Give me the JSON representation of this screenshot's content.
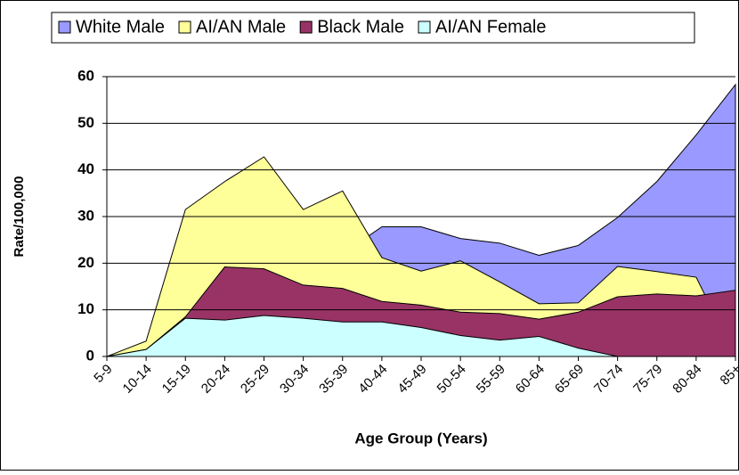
{
  "chart_data": {
    "type": "area",
    "categories": [
      "5-9",
      "10-14",
      "15-19",
      "20-24",
      "25-29",
      "30-34",
      "35-39",
      "40-44",
      "45-49",
      "50-54",
      "55-59",
      "60-64",
      "65-69",
      "70-74",
      "75-79",
      "80-84",
      "85+"
    ],
    "series": [
      {
        "name": "White Male",
        "color": "#9999ff",
        "values": [
          0,
          1,
          8,
          15,
          18,
          20,
          22,
          27.8,
          27.8,
          25.3,
          24.3,
          21.7,
          23.8,
          29.8,
          37.5,
          47.5,
          58.3
        ]
      },
      {
        "name": "AI/AN Male",
        "color": "#ffff99",
        "values": [
          0,
          3.3,
          31.5,
          37.5,
          42.8,
          31.5,
          35.5,
          21.2,
          18.3,
          20.5,
          16,
          11.3,
          11.5,
          19.3,
          18.2,
          17,
          0
        ]
      },
      {
        "name": "Black Male",
        "color": "#993366",
        "values": [
          0,
          1.5,
          8.5,
          19.2,
          18.8,
          15.3,
          14.6,
          11.8,
          11,
          9.5,
          9.2,
          8,
          9.5,
          12.8,
          13.4,
          13,
          14.2
        ]
      },
      {
        "name": "AI/AN Female",
        "color": "#ccffff",
        "values": [
          0,
          1.5,
          8.2,
          7.8,
          8.8,
          8.2,
          7.4,
          7.4,
          6.2,
          4.5,
          3.5,
          4.3,
          1.8,
          0,
          0,
          0,
          0
        ]
      }
    ],
    "xlabel": "Age Group (Years)",
    "ylabel": "Rate/100,000",
    "ylim": [
      0,
      60
    ],
    "yticks": [
      0,
      10,
      20,
      30,
      40,
      50,
      60
    ],
    "grid": true,
    "legend": "top"
  }
}
